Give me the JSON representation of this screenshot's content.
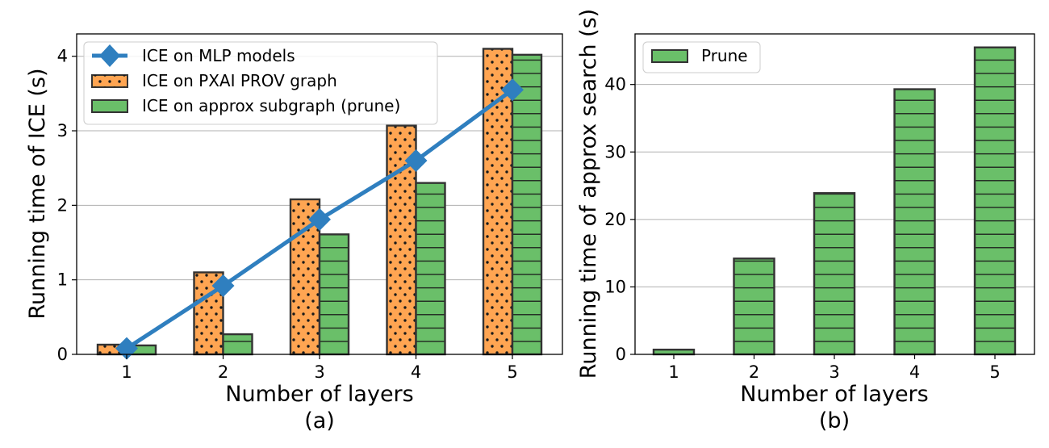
{
  "chart_data": [
    {
      "type": "bar",
      "panel_label": "(a)",
      "xlabel": "Number of layers",
      "ylabel": "Running time of ICE (s)",
      "categories": [
        "1",
        "2",
        "3",
        "4",
        "5"
      ],
      "ylim": [
        0,
        4.3
      ],
      "yticks": [
        0,
        1,
        2,
        3,
        4
      ],
      "grid": "y",
      "legend_position": "top-left",
      "series": [
        {
          "name": "ICE on MLP models",
          "kind": "line",
          "marker": "diamond",
          "color": "#2f7fbf",
          "values": [
            0.08,
            0.92,
            1.81,
            2.6,
            3.55
          ]
        },
        {
          "name": "ICE on PXAI PROV graph",
          "kind": "bar",
          "hatch": "dots",
          "color": "#ffa552",
          "values": [
            0.13,
            1.1,
            2.08,
            3.07,
            4.1
          ]
        },
        {
          "name": "ICE on approx subgraph (prune)",
          "kind": "bar",
          "hatch": "horizontal",
          "color": "#6abf69",
          "values": [
            0.12,
            0.27,
            1.61,
            2.3,
            4.02
          ]
        }
      ]
    },
    {
      "type": "bar",
      "panel_label": "(b)",
      "xlabel": "Number of layers",
      "ylabel": "Running time of approx search (s)",
      "categories": [
        "1",
        "2",
        "3",
        "4",
        "5"
      ],
      "ylim": [
        0,
        47.5
      ],
      "yticks": [
        0,
        10,
        20,
        30,
        40
      ],
      "grid": "y",
      "legend_position": "top-left",
      "series": [
        {
          "name": "Prune",
          "kind": "bar",
          "hatch": "horizontal",
          "color": "#6abf69",
          "values": [
            0.7,
            14.2,
            23.9,
            39.3,
            45.5
          ]
        }
      ]
    }
  ]
}
